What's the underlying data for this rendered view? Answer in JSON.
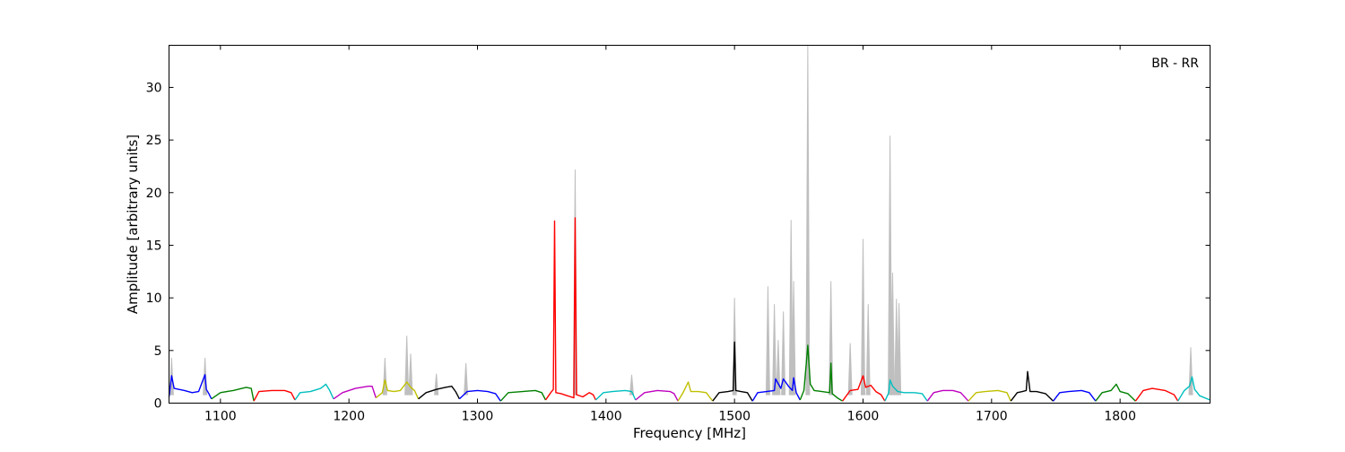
{
  "chart_data": {
    "type": "line",
    "title": "",
    "annotation": "BR - RR",
    "xlabel": "Frequency [MHz]",
    "ylabel": "Amplitude [arbitrary units]",
    "xlim": [
      1060,
      1870
    ],
    "ylim": [
      0,
      34
    ],
    "xticks": [
      1100,
      1200,
      1300,
      1400,
      1500,
      1600,
      1700,
      1800
    ],
    "yticks": [
      0,
      5,
      10,
      15,
      20,
      25,
      30
    ],
    "grid": false,
    "background_series": {
      "color": "#bfbfbf",
      "peaks": [
        [
          1062,
          4.3
        ],
        [
          1088,
          4.3
        ],
        [
          1228,
          4.3
        ],
        [
          1245,
          6.4
        ],
        [
          1248,
          4.7
        ],
        [
          1268,
          2.8
        ],
        [
          1291,
          3.8
        ],
        [
          1376,
          22.2
        ],
        [
          1420,
          2.7
        ],
        [
          1500,
          10.0
        ],
        [
          1526,
          11.1
        ],
        [
          1531,
          9.4
        ],
        [
          1534,
          6.0
        ],
        [
          1538,
          8.7
        ],
        [
          1544,
          17.4
        ],
        [
          1546,
          11.6
        ],
        [
          1557,
          34.0
        ],
        [
          1575,
          11.6
        ],
        [
          1590,
          5.7
        ],
        [
          1600,
          15.6
        ],
        [
          1604,
          9.4
        ],
        [
          1621,
          25.4
        ],
        [
          1623,
          12.4
        ],
        [
          1626,
          9.9
        ],
        [
          1628,
          9.5
        ],
        [
          1855,
          5.3
        ]
      ]
    },
    "segment_colors": [
      "#0000ff",
      "#008000",
      "#ff0000",
      "#00bfbf",
      "#bf00bf",
      "#bfbf00",
      "#000000"
    ],
    "segments": [
      {
        "color": "#0000ff",
        "x": [
          1060,
          1062,
          1064,
          1072,
          1078,
          1083,
          1088,
          1089,
          1091,
          1093
        ],
        "y": [
          0.6,
          2.6,
          1.4,
          1.2,
          1.0,
          1.1,
          2.7,
          1.3,
          0.9,
          0.4
        ]
      },
      {
        "color": "#008000",
        "x": [
          1093,
          1100,
          1110,
          1120,
          1124,
          1126
        ],
        "y": [
          0.4,
          1.0,
          1.2,
          1.5,
          1.4,
          0.2
        ]
      },
      {
        "color": "#ff0000",
        "x": [
          1126,
          1130,
          1140,
          1150,
          1155,
          1158
        ],
        "y": [
          0.2,
          1.1,
          1.2,
          1.2,
          1.0,
          0.3
        ]
      },
      {
        "color": "#00bfbf",
        "x": [
          1158,
          1162,
          1170,
          1178,
          1182,
          1185,
          1188
        ],
        "y": [
          0.3,
          1.0,
          1.1,
          1.4,
          1.8,
          1.2,
          0.4
        ]
      },
      {
        "color": "#bf00bf",
        "x": [
          1188,
          1195,
          1205,
          1215,
          1218,
          1221
        ],
        "y": [
          0.4,
          1.0,
          1.4,
          1.6,
          1.6,
          0.5
        ]
      },
      {
        "color": "#bfbf00",
        "x": [
          1221,
          1226,
          1228,
          1230,
          1235,
          1240,
          1245,
          1248,
          1251,
          1254
        ],
        "y": [
          0.5,
          1.0,
          2.2,
          1.2,
          1.1,
          1.2,
          2.0,
          1.5,
          1.2,
          0.4
        ]
      },
      {
        "color": "#000000",
        "x": [
          1254,
          1260,
          1268,
          1275,
          1280,
          1283,
          1286
        ],
        "y": [
          0.4,
          1.0,
          1.3,
          1.5,
          1.6,
          1.1,
          0.4
        ]
      },
      {
        "color": "#0000ff",
        "x": [
          1286,
          1292,
          1300,
          1308,
          1314,
          1318
        ],
        "y": [
          0.4,
          1.1,
          1.2,
          1.1,
          0.9,
          0.2
        ]
      },
      {
        "color": "#008000",
        "x": [
          1318,
          1324,
          1335,
          1345,
          1350,
          1353
        ],
        "y": [
          0.2,
          1.0,
          1.1,
          1.2,
          1.0,
          0.3
        ]
      },
      {
        "color": "#ff0000",
        "x": [
          1353,
          1357,
          1359,
          1360,
          1361,
          1365,
          1370,
          1375,
          1376,
          1377,
          1382,
          1387,
          1390,
          1392
        ],
        "y": [
          0.3,
          1.0,
          1.3,
          17.3,
          1.0,
          0.9,
          0.7,
          0.5,
          17.6,
          0.8,
          0.6,
          1.0,
          0.8,
          0.3
        ]
      },
      {
        "color": "#00bfbf",
        "x": [
          1392,
          1398,
          1405,
          1415,
          1420,
          1423
        ],
        "y": [
          0.3,
          1.0,
          1.1,
          1.2,
          1.1,
          0.3
        ]
      },
      {
        "color": "#bf00bf",
        "x": [
          1423,
          1430,
          1440,
          1450,
          1453,
          1456
        ],
        "y": [
          0.3,
          1.0,
          1.2,
          1.1,
          0.9,
          0.2
        ]
      },
      {
        "color": "#bfbf00",
        "x": [
          1456,
          1460,
          1464,
          1466,
          1472,
          1478,
          1483
        ],
        "y": [
          0.2,
          1.0,
          2.0,
          1.1,
          1.1,
          1.0,
          0.2
        ]
      },
      {
        "color": "#000000",
        "x": [
          1483,
          1488,
          1495,
          1499,
          1500,
          1501,
          1505,
          1510,
          1514
        ],
        "y": [
          0.2,
          1.0,
          1.1,
          1.2,
          5.8,
          1.2,
          1.1,
          1.0,
          0.2
        ]
      },
      {
        "color": "#0000ff",
        "x": [
          1514,
          1518,
          1525,
          1531,
          1532,
          1536,
          1538,
          1542,
          1545,
          1546,
          1548,
          1551
        ],
        "y": [
          0.2,
          1.0,
          1.1,
          1.2,
          2.3,
          1.4,
          2.3,
          1.6,
          1.2,
          2.4,
          1.0,
          0.3
        ]
      },
      {
        "color": "#008000",
        "x": [
          1551,
          1554,
          1557,
          1559,
          1562,
          1568,
          1574,
          1575,
          1576,
          1580,
          1584
        ],
        "y": [
          0.3,
          1.2,
          5.5,
          1.8,
          1.2,
          1.1,
          1.0,
          3.8,
          0.9,
          0.5,
          0.2
        ]
      },
      {
        "color": "#ff0000",
        "x": [
          1584,
          1590,
          1596,
          1600,
          1602,
          1606,
          1610,
          1614,
          1617
        ],
        "y": [
          0.2,
          1.2,
          1.3,
          2.6,
          1.5,
          1.7,
          1.1,
          0.8,
          0.2
        ]
      },
      {
        "color": "#00bfbf",
        "x": [
          1617,
          1620,
          1621,
          1623,
          1627,
          1632,
          1640,
          1646,
          1650
        ],
        "y": [
          0.2,
          1.0,
          2.2,
          1.6,
          1.1,
          1.0,
          1.0,
          0.9,
          0.2
        ]
      },
      {
        "color": "#bf00bf",
        "x": [
          1650,
          1655,
          1662,
          1670,
          1676,
          1682
        ],
        "y": [
          0.2,
          1.0,
          1.2,
          1.2,
          1.0,
          0.2
        ]
      },
      {
        "color": "#bfbf00",
        "x": [
          1682,
          1688,
          1695,
          1705,
          1712,
          1715
        ],
        "y": [
          0.2,
          1.0,
          1.1,
          1.2,
          1.0,
          0.2
        ]
      },
      {
        "color": "#000000",
        "x": [
          1715,
          1720,
          1724,
          1727,
          1728,
          1730,
          1735,
          1742,
          1748
        ],
        "y": [
          0.2,
          1.0,
          1.1,
          1.2,
          3.0,
          1.1,
          1.1,
          0.9,
          0.2
        ]
      },
      {
        "color": "#0000ff",
        "x": [
          1748,
          1753,
          1760,
          1770,
          1776,
          1781
        ],
        "y": [
          0.2,
          1.0,
          1.1,
          1.2,
          1.0,
          0.2
        ]
      },
      {
        "color": "#008000",
        "x": [
          1781,
          1786,
          1793,
          1797,
          1800,
          1806,
          1812
        ],
        "y": [
          0.2,
          1.0,
          1.2,
          1.8,
          1.1,
          0.9,
          0.2
        ]
      },
      {
        "color": "#ff0000",
        "x": [
          1812,
          1818,
          1825,
          1835,
          1842,
          1845
        ],
        "y": [
          0.2,
          1.2,
          1.4,
          1.2,
          0.8,
          0.2
        ]
      },
      {
        "color": "#00bfbf",
        "x": [
          1845,
          1850,
          1854,
          1856,
          1858,
          1862,
          1870
        ],
        "y": [
          0.2,
          1.2,
          1.6,
          2.5,
          1.3,
          0.7,
          0.3
        ]
      }
    ]
  }
}
